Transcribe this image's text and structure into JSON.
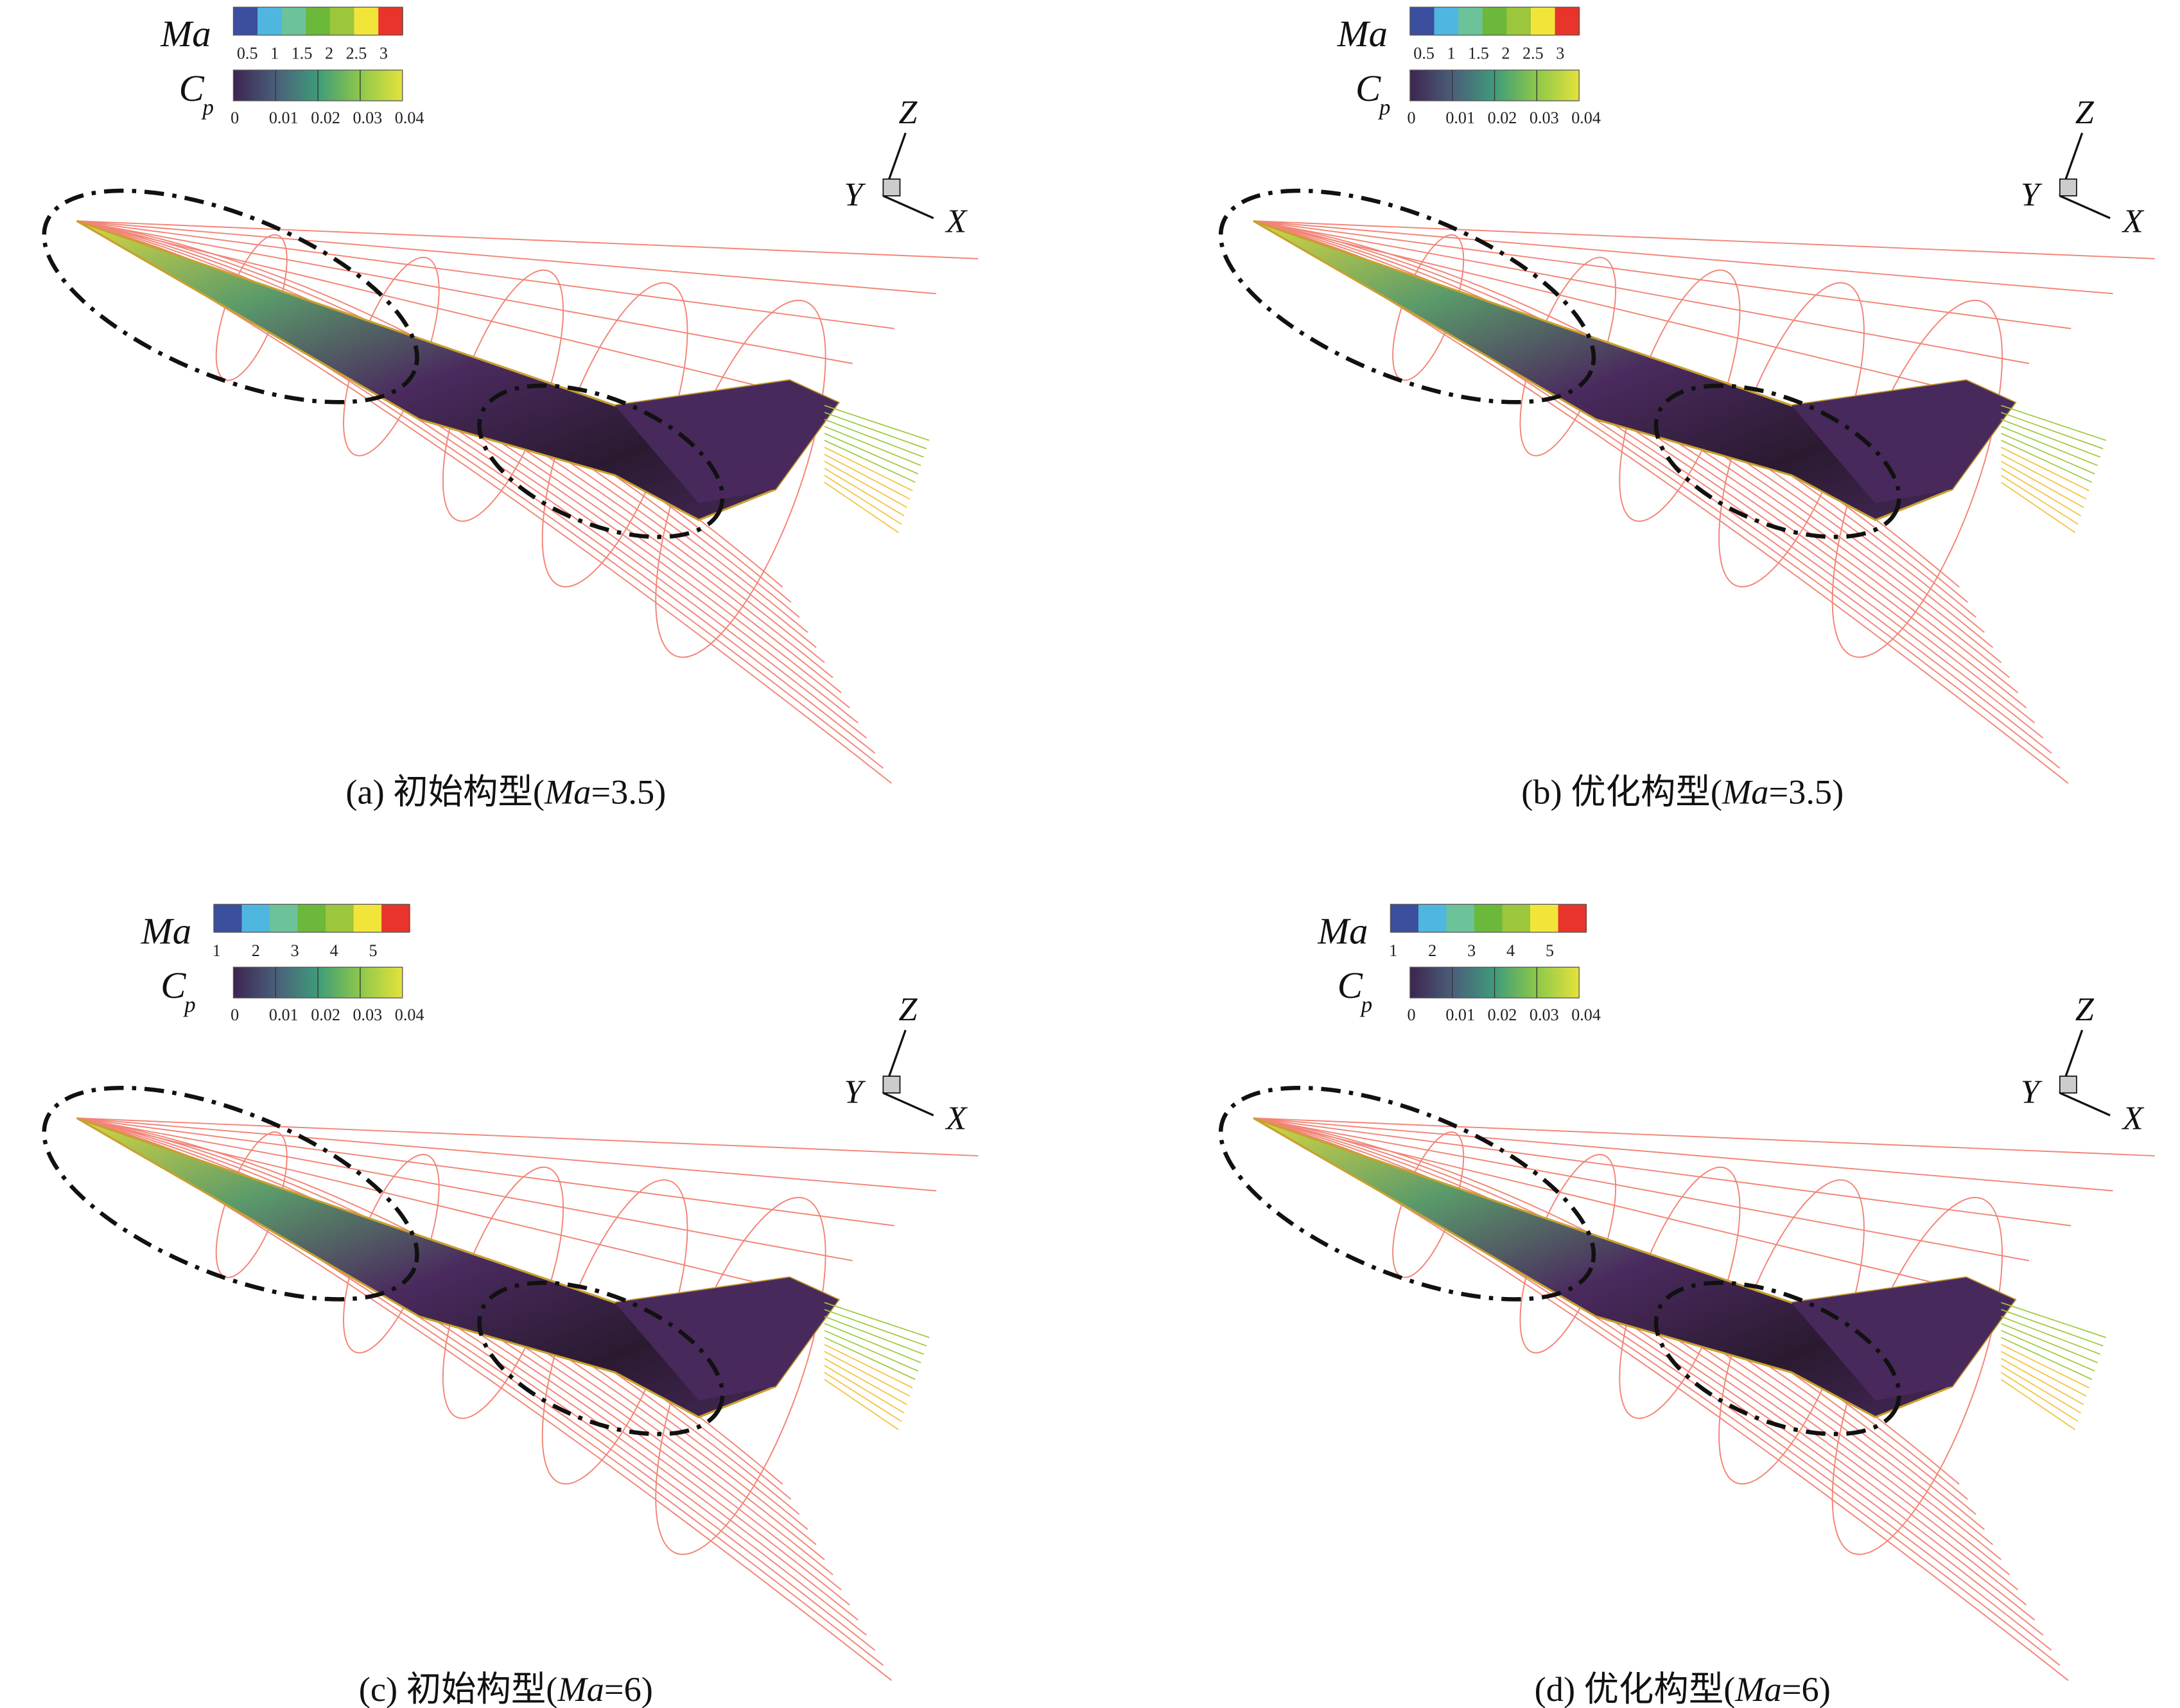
{
  "panels": [
    {
      "caption": "(a) 初始构型(Ma=3.5)",
      "caption_parts": {
        "prefix": "(a) 初始构型(",
        "var": "Ma",
        "suffix": "=3.5)"
      },
      "ma_legend": {
        "label": "Ma",
        "ticks": [
          "0.5",
          "1",
          "1.5",
          "2",
          "2.5",
          "3"
        ],
        "colors": [
          "#3b4f9e",
          "#4fb6e0",
          "#6cc39a",
          "#6bb83a",
          "#9cc63b",
          "#f2e53a",
          "#e8342a"
        ]
      },
      "cp_legend": {
        "label": "C",
        "sub": "p",
        "ticks": [
          "0",
          "0.01",
          "0.02",
          "0.03",
          "0.04"
        ],
        "colors": [
          "#3d2550",
          "#4a5e7a",
          "#3f9b7a",
          "#8cc84a",
          "#e4e23c"
        ]
      },
      "axes": {
        "x": "X",
        "y": "Y",
        "z": "Z"
      }
    },
    {
      "caption": "(b) 优化构型(Ma=3.5)",
      "caption_parts": {
        "prefix": "(b) 优化构型(",
        "var": "Ma",
        "suffix": "=3.5)"
      },
      "ma_legend": {
        "label": "Ma",
        "ticks": [
          "0.5",
          "1",
          "1.5",
          "2",
          "2.5",
          "3"
        ],
        "colors": [
          "#3b4f9e",
          "#4fb6e0",
          "#6cc39a",
          "#6bb83a",
          "#9cc63b",
          "#f2e53a",
          "#e8342a"
        ]
      },
      "cp_legend": {
        "label": "C",
        "sub": "p",
        "ticks": [
          "0",
          "0.01",
          "0.02",
          "0.03",
          "0.04"
        ],
        "colors": [
          "#3d2550",
          "#4a5e7a",
          "#3f9b7a",
          "#8cc84a",
          "#e4e23c"
        ]
      },
      "axes": {
        "x": "X",
        "y": "Y",
        "z": "Z"
      }
    },
    {
      "caption": "(c) 初始构型(Ma=6)",
      "caption_parts": {
        "prefix": "(c) 初始构型(",
        "var": "Ma",
        "suffix": "=6)"
      },
      "ma_legend": {
        "label": "Ma",
        "ticks": [
          "1",
          "2",
          "3",
          "4",
          "5"
        ],
        "colors": [
          "#3b4f9e",
          "#4fb6e0",
          "#6cc39a",
          "#6bb83a",
          "#9cc63b",
          "#f2e53a",
          "#e8342a"
        ]
      },
      "cp_legend": {
        "label": "C",
        "sub": "p",
        "ticks": [
          "0",
          "0.01",
          "0.02",
          "0.03",
          "0.04"
        ],
        "colors": [
          "#3d2550",
          "#4a5e7a",
          "#3f9b7a",
          "#8cc84a",
          "#e4e23c"
        ]
      },
      "axes": {
        "x": "X",
        "y": "Y",
        "z": "Z"
      }
    },
    {
      "caption": "(d) 优化构型(Ma=6)",
      "caption_parts": {
        "prefix": "(d) 优化构型(",
        "var": "Ma",
        "suffix": "=6)"
      },
      "ma_legend": {
        "label": "Ma",
        "ticks": [
          "1",
          "2",
          "3",
          "4",
          "5"
        ],
        "colors": [
          "#3b4f9e",
          "#4fb6e0",
          "#6cc39a",
          "#6bb83a",
          "#9cc63b",
          "#f2e53a",
          "#e8342a"
        ]
      },
      "cp_legend": {
        "label": "C",
        "sub": "p",
        "ticks": [
          "0",
          "0.01",
          "0.02",
          "0.03",
          "0.04"
        ],
        "colors": [
          "#3d2550",
          "#4a5e7a",
          "#3f9b7a",
          "#8cc84a",
          "#e4e23c"
        ]
      },
      "axes": {
        "x": "X",
        "y": "Y",
        "z": "Z"
      }
    }
  ],
  "colors": {
    "streamline": "#f07060",
    "highlight_ellipse": "#111111",
    "vehicle_surface": "#4a2a5e"
  }
}
